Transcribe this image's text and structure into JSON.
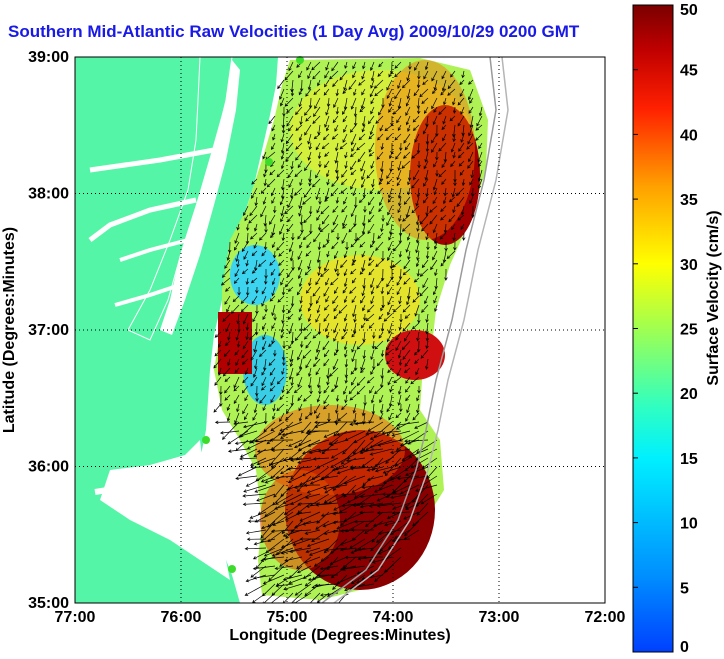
{
  "title": "Southern Mid-Atlantic Raw Velocities (1 Day Avg) 2009/10/29 0200 GMT",
  "map": {
    "xlabel": "Longitude (Degrees:Minutes)",
    "ylabel": "Latitude (Degrees:Minutes)",
    "x_ticks": [
      "77:00",
      "76:00",
      "75:00",
      "74:00",
      "73:00",
      "72:00"
    ],
    "y_ticks": [
      "39:00",
      "38:00",
      "37:00",
      "36:00",
      "35:00"
    ],
    "lon_range": [
      -77,
      -72
    ],
    "lat_range": [
      35,
      39
    ],
    "grid": "dotted",
    "land_color": "#55f5a8",
    "water_color": "#ffffff",
    "arrow_color": "#000000",
    "station_color": "#3ddc2a"
  },
  "colorbar": {
    "label": "Surface Velocity (cm/s)",
    "ticks": [
      "50",
      "45",
      "40",
      "35",
      "30",
      "25",
      "20",
      "15",
      "10",
      "5",
      "0"
    ],
    "range": [
      0,
      50
    ],
    "colormap": "jet"
  },
  "legend": []
}
